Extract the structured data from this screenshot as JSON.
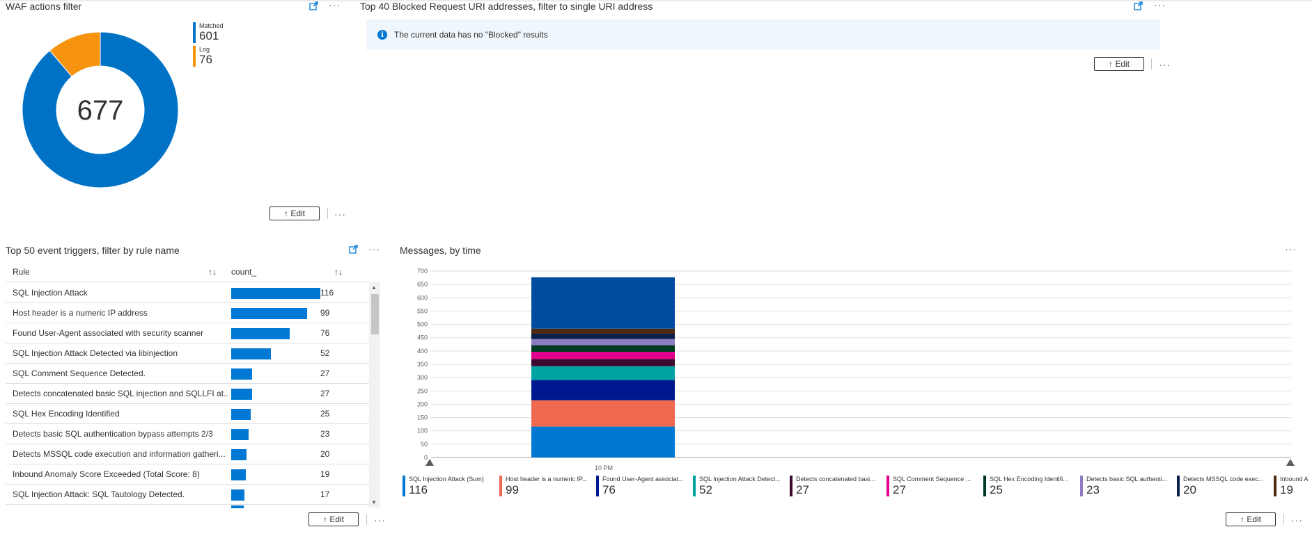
{
  "waf_tile": {
    "title": "WAF actions filter",
    "total": "677",
    "edit_label": "↑ Edit",
    "legend": [
      {
        "label": "Matched",
        "value": "601",
        "color": "#0072c6"
      },
      {
        "label": "Log",
        "value": "76",
        "color": "#f7940f"
      }
    ],
    "icons": {
      "pin": "pin-icon",
      "more": "more-icon"
    }
  },
  "blocked_tile": {
    "title": "Top 40 Blocked Request URI addresses, filter to single URI address",
    "info_message": "The current data has no \"Blocked\" results",
    "edit_label": "↑ Edit"
  },
  "triggers_tile": {
    "title": "Top 50 event triggers, filter by rule name",
    "edit_label": "↑ Edit",
    "columns": [
      "Rule",
      "count_"
    ],
    "rows": [
      {
        "rule": "SQL Injection Attack",
        "count": "116",
        "fraction": 1.0
      },
      {
        "rule": "Host header is a numeric IP address",
        "count": "99",
        "fraction": 0.853
      },
      {
        "rule": "Found User-Agent associated with security scanner",
        "count": "76",
        "fraction": 0.655
      },
      {
        "rule": "SQL Injection Attack Detected via libinjection",
        "count": "52",
        "fraction": 0.448
      },
      {
        "rule": "SQL Comment Sequence Detected.",
        "count": "27",
        "fraction": 0.233
      },
      {
        "rule": "Detects concatenated basic SQL injection and SQLLFI at...",
        "count": "27",
        "fraction": 0.233
      },
      {
        "rule": "SQL Hex Encoding Identified",
        "count": "25",
        "fraction": 0.216
      },
      {
        "rule": "Detects basic SQL authentication bypass attempts 2/3",
        "count": "23",
        "fraction": 0.198
      },
      {
        "rule": "Detects MSSQL code execution and information gatheri...",
        "count": "20",
        "fraction": 0.172
      },
      {
        "rule": "Inbound Anomaly Score Exceeded (Total Score: 8)",
        "count": "19",
        "fraction": 0.164
      },
      {
        "rule": "SQL Injection Attack: SQL Tautology Detected.",
        "count": "17",
        "fraction": 0.147
      }
    ]
  },
  "messages_tile": {
    "title": "Messages, by time",
    "edit_label": "↑ Edit"
  },
  "chart_data": {
    "type": "bar",
    "stacked": true,
    "categories": [
      "10 PM"
    ],
    "ylim": [
      0,
      700
    ],
    "yticks": [
      "700",
      "650",
      "600",
      "550",
      "500",
      "450",
      "400",
      "350",
      "300",
      "250",
      "200",
      "150",
      "100",
      "50",
      "0"
    ],
    "grid": true,
    "legend_position": "bottom",
    "series": [
      {
        "name": "SQL Injection Attack (Sum)",
        "values": [
          116
        ],
        "color": "#0078d4",
        "value_label": "116"
      },
      {
        "name": "Host header is a numeric IP...",
        "values": [
          99
        ],
        "color": "#ef6950",
        "value_label": "99"
      },
      {
        "name": "Found User-Agent associat...",
        "values": [
          76
        ],
        "color": "#00188f",
        "value_label": "76"
      },
      {
        "name": "SQL Injection Attack Detect...",
        "values": [
          52
        ],
        "color": "#00a3a3",
        "value_label": "52"
      },
      {
        "name": "Detects concatenated basi...",
        "values": [
          27
        ],
        "color": "#3b0a2e",
        "value_label": "27"
      },
      {
        "name": "SQL Comment Sequence ...",
        "values": [
          27
        ],
        "color": "#e3008c",
        "value_label": "27"
      },
      {
        "name": "SQL Hex Encoding Identifi...",
        "values": [
          25
        ],
        "color": "#013a21",
        "value_label": "25"
      },
      {
        "name": "Detects basic SQL authenti...",
        "values": [
          23
        ],
        "color": "#8e7cc3",
        "value_label": "23"
      },
      {
        "name": "Detects MSSQL code exec...",
        "values": [
          20
        ],
        "color": "#0a1f4a",
        "value_label": "20"
      },
      {
        "name": "Inbound A",
        "values": [
          19
        ],
        "color": "#4b2a10",
        "value_label": "19"
      },
      {
        "name": "",
        "values": [
          193
        ],
        "color": "#004b9f",
        "value_label": ""
      }
    ]
  }
}
